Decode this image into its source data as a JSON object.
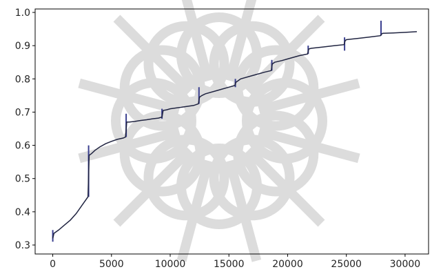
{
  "colors": {
    "line": "#1f2340",
    "spike": "#3a3f8f",
    "axis": "#000000",
    "watermark": "#d9d9d9",
    "background": "#ffffff"
  },
  "watermark": {
    "icon": "decorative-rosette-watermark"
  },
  "chart_data": {
    "type": "line",
    "title": "",
    "xlabel": "",
    "ylabel": "",
    "xlim": [
      -1500,
      32000
    ],
    "ylim": [
      0.3,
      1.0
    ],
    "grid": false,
    "legend": "none",
    "x_ticks": [
      0,
      5000,
      10000,
      15000,
      20000,
      25000,
      30000
    ],
    "y_ticks": [
      0.3,
      0.4,
      0.5,
      0.6,
      0.7,
      0.8,
      0.9,
      1.0
    ],
    "x_tick_labels": [
      "0",
      "5000",
      "10000",
      "15000",
      "20000",
      "25000",
      "30000"
    ],
    "y_tick_labels": [
      "0.3",
      "0.4",
      "0.5",
      "0.6",
      "0.7",
      "0.8",
      "0.9",
      "1.0"
    ],
    "series": [
      {
        "x": [
          0,
          100,
          500,
          1000,
          1500,
          2000,
          2500,
          3000,
          3100,
          3300,
          3600,
          4000,
          4500,
          5000,
          5500,
          6000,
          6200,
          6300,
          6500,
          7000,
          7500,
          8000,
          8500,
          9000,
          9300,
          9400,
          9700,
          10000,
          11000,
          12000,
          12400,
          12500,
          12700,
          13000,
          14000,
          15000,
          15500,
          15600,
          15800,
          16000,
          17000,
          18000,
          18600,
          18700,
          18900,
          19500,
          20000,
          21000,
          21700,
          21800,
          22000,
          23000,
          24000,
          24800,
          24900,
          25000,
          26000,
          27000,
          27900,
          28000,
          28100,
          29000,
          30000,
          31000
        ],
        "y": [
          0.32,
          0.335,
          0.345,
          0.36,
          0.375,
          0.395,
          0.42,
          0.445,
          0.57,
          0.575,
          0.585,
          0.595,
          0.605,
          0.612,
          0.618,
          0.622,
          0.625,
          0.67,
          0.67,
          0.672,
          0.675,
          0.677,
          0.68,
          0.682,
          0.685,
          0.705,
          0.707,
          0.71,
          0.715,
          0.72,
          0.725,
          0.745,
          0.75,
          0.755,
          0.765,
          0.775,
          0.78,
          0.79,
          0.795,
          0.8,
          0.81,
          0.82,
          0.825,
          0.845,
          0.85,
          0.855,
          0.86,
          0.87,
          0.875,
          0.89,
          0.892,
          0.896,
          0.9,
          0.903,
          0.915,
          0.918,
          0.922,
          0.926,
          0.93,
          0.935,
          0.937,
          0.938,
          0.94,
          0.942
        ]
      }
    ],
    "spikes": [
      {
        "x": 0,
        "y_low": 0.31,
        "y_high": 0.345
      },
      {
        "x": 3050,
        "y_low": 0.445,
        "y_high": 0.6
      },
      {
        "x": 6250,
        "y_low": 0.625,
        "y_high": 0.695
      },
      {
        "x": 9300,
        "y_low": 0.68,
        "y_high": 0.71
      },
      {
        "x": 12450,
        "y_low": 0.725,
        "y_high": 0.775
      },
      {
        "x": 15550,
        "y_low": 0.775,
        "y_high": 0.8
      },
      {
        "x": 18650,
        "y_low": 0.825,
        "y_high": 0.857
      },
      {
        "x": 21750,
        "y_low": 0.875,
        "y_high": 0.9
      },
      {
        "x": 24850,
        "y_low": 0.885,
        "y_high": 0.925
      },
      {
        "x": 27950,
        "y_low": 0.93,
        "y_high": 0.975
      }
    ]
  }
}
